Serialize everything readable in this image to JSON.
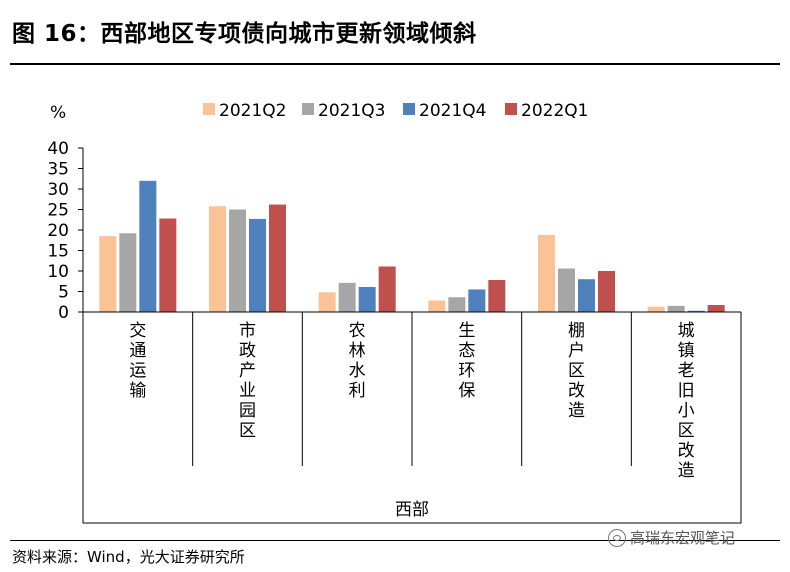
{
  "header": {
    "title": "图 16：西部地区专项债向城市更新领域倾斜"
  },
  "footer": {
    "source": "资料来源：Wind，光大证券研究所",
    "watermark": "高瑞东宏观笔记"
  },
  "chart_data": {
    "type": "bar",
    "ylabel": "%",
    "xlabel": "西部",
    "ylim": [
      0,
      40
    ],
    "yticks": [
      0,
      5,
      10,
      15,
      20,
      25,
      30,
      35,
      40
    ],
    "categories": [
      "交通运输",
      "市政产业园区",
      "农林水利",
      "生态环保",
      "棚户区改造",
      "城镇老旧小区改造"
    ],
    "series": [
      {
        "name": "2021Q2",
        "color": "#F9C396",
        "values": [
          18.5,
          25.8,
          4.8,
          2.8,
          18.8,
          1.3
        ]
      },
      {
        "name": "2021Q3",
        "color": "#A6A6A6",
        "values": [
          19.2,
          25.0,
          7.1,
          3.6,
          10.6,
          1.5
        ]
      },
      {
        "name": "2021Q4",
        "color": "#4F81BD",
        "values": [
          32.0,
          22.7,
          6.1,
          5.5,
          8.0,
          0.3
        ]
      },
      {
        "name": "2022Q1",
        "color": "#C0504D",
        "values": [
          22.8,
          26.2,
          11.1,
          7.8,
          10.0,
          1.7
        ]
      }
    ],
    "grid": false,
    "legend": "top"
  }
}
